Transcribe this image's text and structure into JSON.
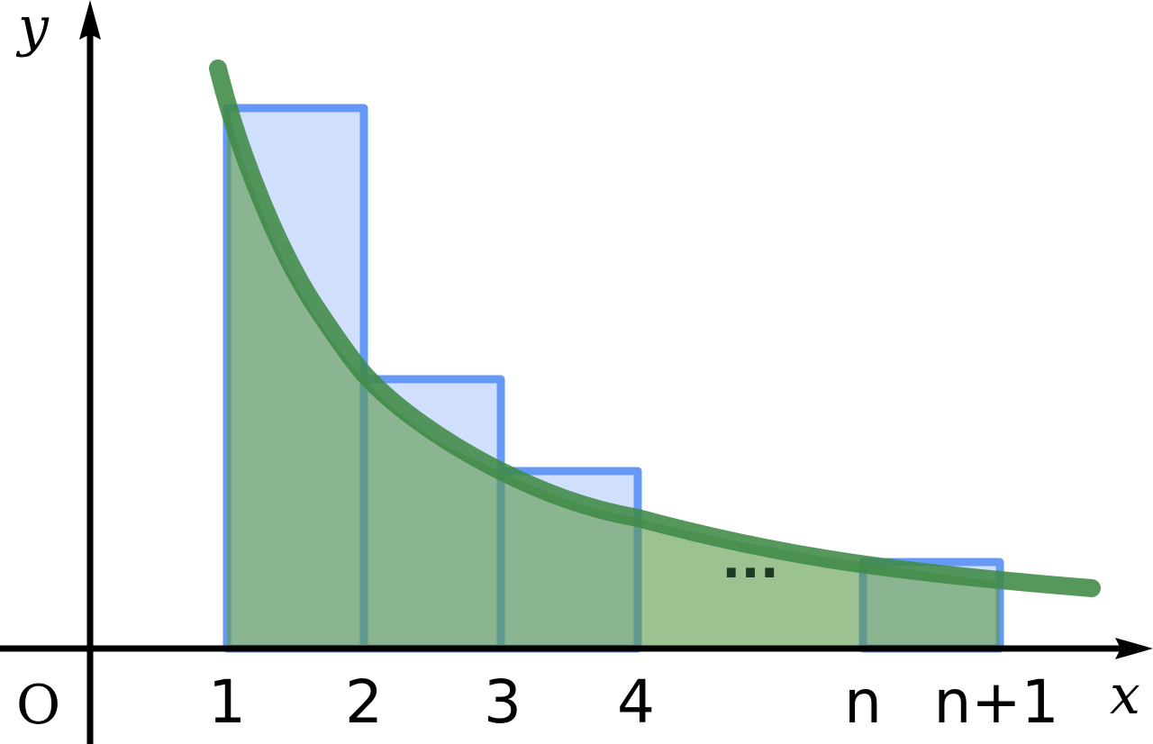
{
  "labels": {
    "y": "y",
    "x": "x",
    "origin": "O",
    "ellipsis": "···"
  },
  "ticks": [
    "1",
    "2",
    "3",
    "4",
    "n",
    "n+1"
  ],
  "colors": {
    "rectangle_fill": "#a9c4f7",
    "rectangle_stroke": "#6699f6",
    "curve": "#3f8a45",
    "area_under_curve": "#5c9a4a"
  }
}
